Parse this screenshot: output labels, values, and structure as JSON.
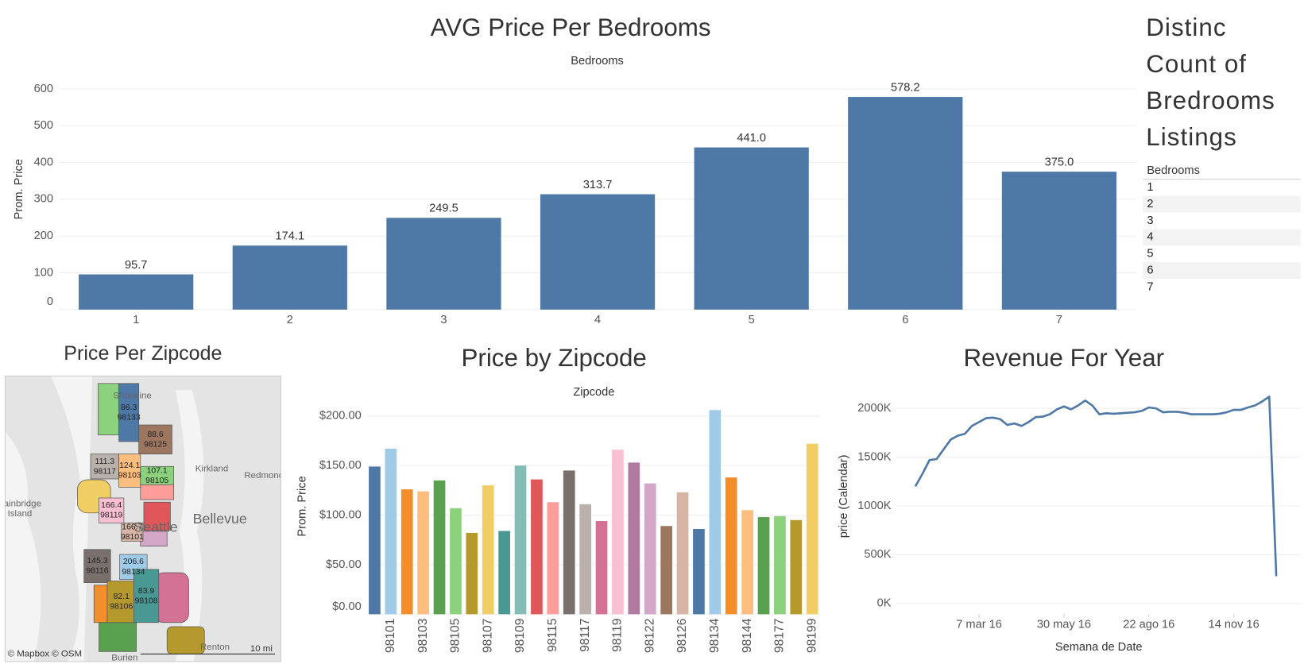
{
  "chart_data": [
    {
      "type": "bar",
      "title": "AVG Price Per Bedrooms",
      "x_label": "Bedrooms",
      "y_label": "Prom. Price",
      "categories": [
        "1",
        "2",
        "3",
        "4",
        "5",
        "6",
        "7"
      ],
      "values": [
        95.7,
        174.1,
        249.5,
        313.7,
        441.0,
        578.2,
        375.0
      ],
      "value_labels": [
        "95.7",
        "174.1",
        "249.5",
        "313.7",
        "441.0",
        "578.2",
        "375.0"
      ],
      "color": "#4e79a7",
      "ylim": [
        0,
        650
      ],
      "yticks": [
        0,
        100,
        200,
        300,
        400,
        500,
        600
      ],
      "grid": true
    },
    {
      "type": "bar",
      "title": "Price by Zipcode",
      "x_label": "Zipcode",
      "y_label": "Prom. Price",
      "categories": [
        null,
        "98101",
        null,
        "98103",
        null,
        "98105",
        null,
        "98107",
        null,
        "98109",
        null,
        "98115",
        null,
        "98117",
        null,
        "98119",
        null,
        "98122",
        null,
        "98126",
        null,
        "98134",
        null,
        "98144",
        null,
        "98177",
        null,
        "98199"
      ],
      "values": [
        149,
        167,
        126,
        124,
        135,
        107,
        82,
        130,
        84,
        150,
        136,
        113,
        145,
        111,
        94,
        166,
        153,
        132,
        89,
        123,
        86,
        206,
        138,
        105,
        98,
        99,
        95,
        172
      ],
      "colors": [
        "#4e79a7",
        "#a0cbe8",
        "#f28e2b",
        "#ffbe7d",
        "#59a14f",
        "#8cd17d",
        "#b6992d",
        "#f1ce63",
        "#499894",
        "#86bcb6",
        "#e15759",
        "#ff9d9a",
        "#79706e",
        "#bab0ac",
        "#d37295",
        "#fabfd2",
        "#b07aa1",
        "#d4a6c8",
        "#9d7660",
        "#d7b5a6",
        "#4e79a7",
        "#a0cbe8",
        "#f28e2b",
        "#ffbe7d",
        "#59a14f",
        "#8cd17d",
        "#b6992d",
        "#f1ce63"
      ],
      "ylim": [
        0,
        232
      ],
      "yticks": [
        {
          "value": 0,
          "label": "$0.00"
        },
        {
          "value": 50,
          "label": "$50.00"
        },
        {
          "value": 100,
          "label": "$100.00"
        },
        {
          "value": 150,
          "label": "$150.00"
        },
        {
          "value": 200,
          "label": "$200.00"
        }
      ],
      "grid": true
    },
    {
      "type": "line",
      "title": "Revenue For Year",
      "x_label": "Semana de Date",
      "y_label": "price (Calendar)",
      "x": [
        "2016-01-04",
        "2016-01-11",
        "2016-01-18",
        "2016-01-25",
        "2016-02-01",
        "2016-02-08",
        "2016-02-15",
        "2016-02-22",
        "2016-02-29",
        "2016-03-07",
        "2016-03-14",
        "2016-03-21",
        "2016-03-28",
        "2016-04-04",
        "2016-04-11",
        "2016-04-18",
        "2016-04-25",
        "2016-05-02",
        "2016-05-09",
        "2016-05-16",
        "2016-05-23",
        "2016-05-30",
        "2016-06-06",
        "2016-06-13",
        "2016-06-20",
        "2016-06-27",
        "2016-07-04",
        "2016-07-11",
        "2016-07-18",
        "2016-07-25",
        "2016-08-01",
        "2016-08-08",
        "2016-08-15",
        "2016-08-22",
        "2016-08-29",
        "2016-09-05",
        "2016-09-12",
        "2016-09-19",
        "2016-09-26",
        "2016-10-03",
        "2016-10-10",
        "2016-10-17",
        "2016-10-24",
        "2016-10-31",
        "2016-11-07",
        "2016-11-14",
        "2016-11-21",
        "2016-11-28",
        "2016-12-05",
        "2016-12-12",
        "2016-12-19",
        "2016-12-26"
      ],
      "values": [
        1200000,
        1330000,
        1470000,
        1480000,
        1580000,
        1680000,
        1720000,
        1740000,
        1820000,
        1860000,
        1900000,
        1905000,
        1890000,
        1830000,
        1845000,
        1820000,
        1860000,
        1910000,
        1915000,
        1940000,
        1990000,
        2020000,
        1990000,
        2030000,
        2080000,
        2030000,
        1940000,
        1950000,
        1945000,
        1950000,
        1955000,
        1960000,
        1975000,
        2010000,
        2000000,
        1960000,
        1965000,
        1965000,
        1955000,
        1940000,
        1940000,
        1940000,
        1940000,
        1945000,
        1960000,
        1985000,
        1985000,
        2010000,
        2030000,
        2070000,
        2120000,
        280000
      ],
      "color": "#4e79a7",
      "xlim": [
        "2015-12-16",
        "2017-01-19"
      ],
      "xticks": [
        {
          "value": "2016-03-07",
          "label": "7 mar 16"
        },
        {
          "value": "2016-05-30",
          "label": "30 may 16"
        },
        {
          "value": "2016-08-22",
          "label": "22 ago 16"
        },
        {
          "value": "2016-11-14",
          "label": "14 nov 16"
        }
      ],
      "ylim": [
        -110000,
        2247000
      ],
      "yticks": [
        {
          "value": 0,
          "label": "0K"
        },
        {
          "value": 500000,
          "label": "500K"
        },
        {
          "value": 1000000,
          "label": "1000K"
        },
        {
          "value": 1500000,
          "label": "1500K"
        },
        {
          "value": 2000000,
          "label": "2000K"
        }
      ],
      "grid": true
    }
  ],
  "table": {
    "title_lines": [
      "Distinc",
      "Count of",
      "Bredrooms",
      "Listings"
    ],
    "header": "Bedrooms",
    "rows": [
      "1",
      "2",
      "3",
      "4",
      "5",
      "6",
      "7"
    ]
  },
  "map": {
    "title": "Price Per Zipcode",
    "regions": [
      {
        "value": 86.3,
        "zipcode": "98133",
        "color": "#4e79a7"
      },
      {
        "value": 88.6,
        "zipcode": "98125",
        "color": "#9d7660"
      },
      {
        "value": 111.3,
        "zipcode": "98117",
        "color": "#bab0ac"
      },
      {
        "value": 124.1,
        "zipcode": "98103",
        "color": "#ffbe7d"
      },
      {
        "value": 107.1,
        "zipcode": "98105",
        "color": "#8cd17d"
      },
      {
        "value": 166.4,
        "zipcode": "98119",
        "color": "#fabfd2"
      },
      {
        "value": 166.7,
        "zipcode": "98101",
        "color": "#d7b5a6"
      },
      {
        "value": 145.3,
        "zipcode": "98116",
        "color": "#79706e"
      },
      {
        "value": 206.6,
        "zipcode": "98134",
        "color": "#a0cbe8"
      },
      {
        "value": 82.1,
        "zipcode": "98106",
        "color": "#b6992d"
      },
      {
        "value": 83.9,
        "zipcode": "98108",
        "color": "#499894"
      }
    ],
    "place_labels": [
      "Shoreline",
      "Kirkland",
      "Redmond",
      "Bainbridge",
      "Island",
      "Bellevue",
      "Seattle",
      "Renton",
      "Burien"
    ],
    "attribution": "© Mapbox © OSM",
    "scale": "10 mi"
  }
}
